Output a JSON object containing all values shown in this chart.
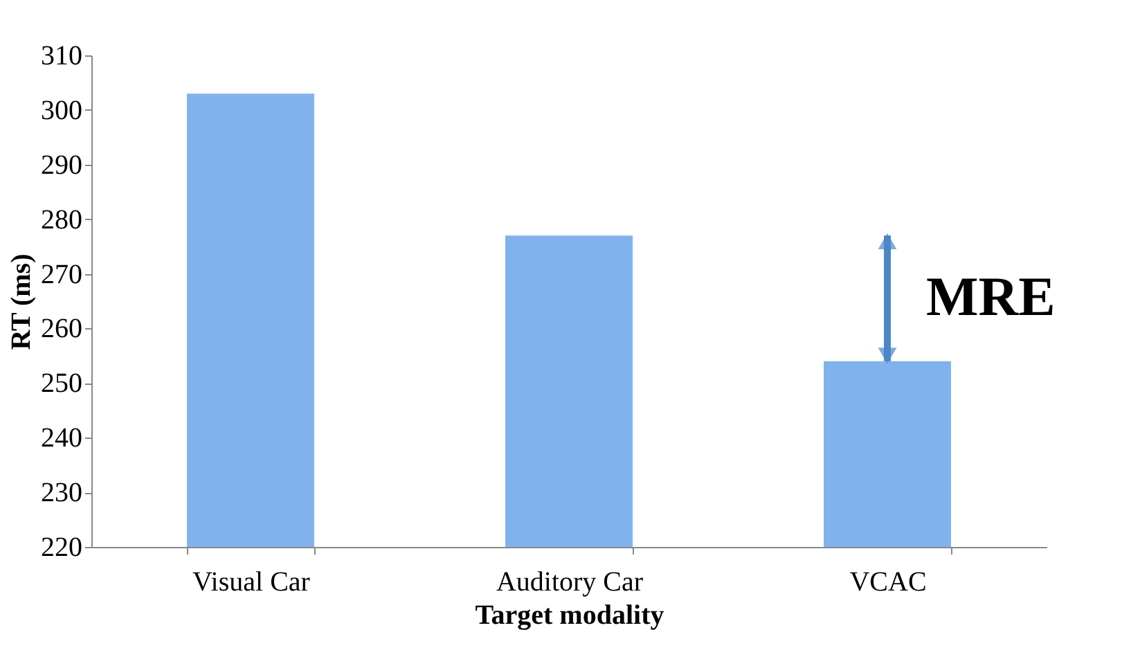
{
  "chart_data": {
    "type": "bar",
    "xlabel": "Target modality",
    "ylabel": "RT (ms)",
    "categories": [
      "Visual Car",
      "Auditory Car",
      "VCAC"
    ],
    "values": [
      303,
      277,
      254
    ],
    "color": "#80b3ee",
    "ylim": [
      220,
      310
    ],
    "yticks": [
      220,
      230,
      240,
      250,
      260,
      270,
      280,
      290,
      300,
      310
    ],
    "grid": false,
    "annotations": [
      "MRE"
    ]
  }
}
